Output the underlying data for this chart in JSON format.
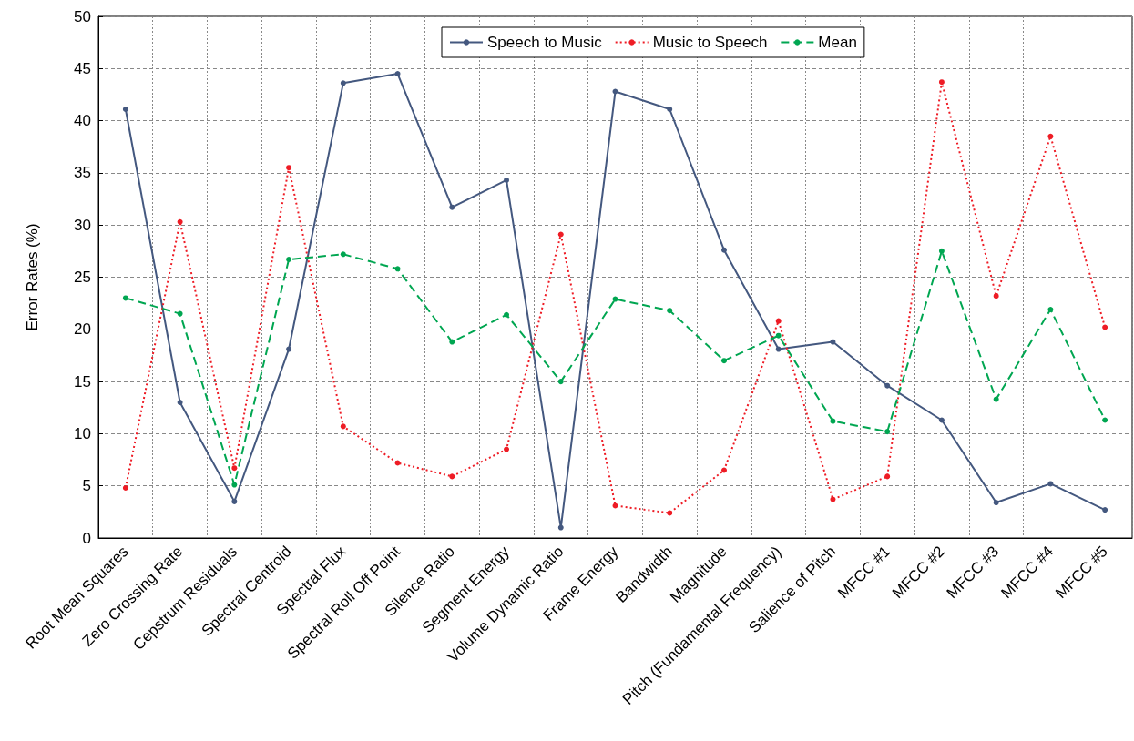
{
  "chart_data": {
    "type": "line",
    "ylabel": "Error Rates (%)",
    "categories": [
      "Root Mean Squares",
      "Zero Crossing Rate",
      "Cepstrum Residuals",
      "Spectral Centroid",
      "Spectral Flux",
      "Spectral Roll Off Point",
      "Silence Ratio",
      "Segment Energy",
      "Volume Dynamic Ratio",
      "Frame Energy",
      "Bandwidth",
      "Magnitude",
      "Pitch (Fundamental Frequency)",
      "Salience of Pitch",
      "MFCC #1",
      "MFCC #2",
      "MFCC #3",
      "MFCC #4",
      "MFCC #5"
    ],
    "series": [
      {
        "name": "Speech to Music",
        "color": "#44587f",
        "line_style": "solid",
        "values": [
          41.1,
          13.0,
          3.5,
          18.1,
          43.6,
          44.5,
          31.7,
          34.3,
          1.0,
          42.8,
          41.1,
          27.6,
          18.1,
          18.8,
          14.6,
          11.3,
          3.4,
          5.2,
          2.7
        ]
      },
      {
        "name": "Music to Speech",
        "color": "#ee1c25",
        "line_style": "dotted",
        "values": [
          4.8,
          30.3,
          6.7,
          35.5,
          10.7,
          7.2,
          5.9,
          8.5,
          29.1,
          3.1,
          2.4,
          6.5,
          20.8,
          3.7,
          5.9,
          43.7,
          23.2,
          38.5,
          20.2
        ]
      },
      {
        "name": "Mean",
        "color": "#00a651",
        "line_style": "dashed",
        "values": [
          23.0,
          21.5,
          5.1,
          26.7,
          27.2,
          25.8,
          18.8,
          21.4,
          15.0,
          22.9,
          21.8,
          17.0,
          19.4,
          11.2,
          10.2,
          27.5,
          13.3,
          21.9,
          11.3
        ]
      }
    ],
    "ylim": [
      0,
      50
    ],
    "yticks": [
      0,
      5,
      10,
      15,
      20,
      25,
      30,
      35,
      40,
      45,
      50
    ],
    "grid": true,
    "legend": "top",
    "marker": "circle"
  }
}
